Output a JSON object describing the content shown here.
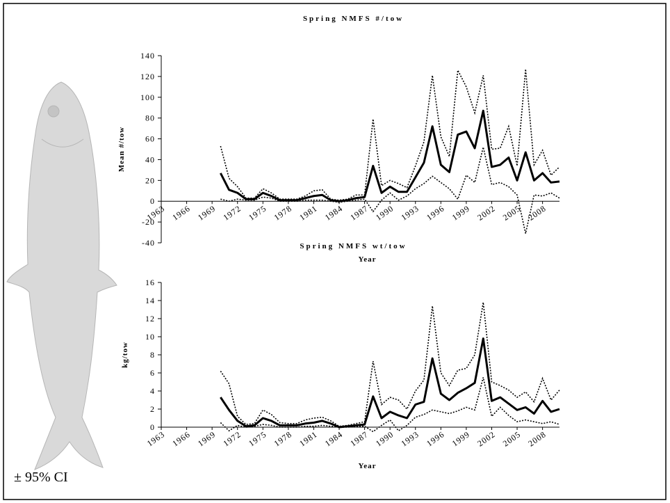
{
  "annotation": "± 95% CI",
  "chart_data": [
    {
      "type": "line",
      "title": "Spring NMFS #/tow",
      "ylabel": "Mean #/tow",
      "xlabel": "Year",
      "x": [
        1970,
        1971,
        1972,
        1973,
        1974,
        1975,
        1976,
        1977,
        1978,
        1979,
        1980,
        1981,
        1982,
        1983,
        1984,
        1985,
        1986,
        1987,
        1988,
        1989,
        1990,
        1991,
        1992,
        1993,
        1994,
        1995,
        1996,
        1997,
        1998,
        1999,
        2000,
        2001,
        2002,
        2003,
        2004,
        2005,
        2006,
        2007,
        2008,
        2009,
        2010
      ],
      "xlim": [
        1963,
        2010
      ],
      "xticks": [
        1963,
        1966,
        1969,
        1972,
        1975,
        1978,
        1981,
        1984,
        1987,
        1990,
        1993,
        1996,
        1999,
        2002,
        2005,
        2008
      ],
      "ylim": [
        -40,
        140
      ],
      "yticks": [
        -40,
        -20,
        0,
        20,
        40,
        60,
        80,
        100,
        120,
        140
      ],
      "series": [
        {
          "color": "#000000",
          "style": "solid",
          "values": [
            27,
            11,
            8,
            2,
            2,
            8,
            5,
            1,
            1,
            1,
            3,
            5,
            6,
            1,
            0,
            1,
            3,
            4,
            34,
            8,
            14,
            9,
            9,
            23,
            37,
            72,
            35,
            28,
            64,
            67,
            51,
            87,
            33,
            35,
            42,
            20,
            47,
            20,
            27,
            18,
            19
          ]
        },
        {
          "color": "#000000",
          "style": "dotted",
          "values": [
            53,
            22,
            14,
            3,
            3,
            12,
            8,
            2,
            2,
            2,
            5,
            10,
            11,
            2,
            1,
            2,
            6,
            6,
            79,
            15,
            20,
            17,
            13,
            34,
            57,
            121,
            62,
            43,
            126,
            110,
            85,
            121,
            50,
            51,
            72,
            34,
            127,
            35,
            49,
            25,
            33
          ]
        },
        {
          "color": "#000000",
          "style": "dotted",
          "values": [
            2,
            0,
            2,
            1,
            1,
            4,
            3,
            0,
            0,
            0,
            1,
            1,
            1,
            0,
            -1,
            0,
            1,
            2,
            -10,
            1,
            8,
            1,
            5,
            12,
            17,
            24,
            18,
            12,
            2,
            25,
            18,
            52,
            16,
            18,
            14,
            6,
            -31,
            6,
            5,
            8,
            3
          ]
        }
      ]
    },
    {
      "type": "line",
      "title": "Spring NMFS wt/tow",
      "ylabel": "kg/tow",
      "xlabel": "Year",
      "x": [
        1970,
        1971,
        1972,
        1973,
        1974,
        1975,
        1976,
        1977,
        1978,
        1979,
        1980,
        1981,
        1982,
        1983,
        1984,
        1985,
        1986,
        1987,
        1988,
        1989,
        1990,
        1991,
        1992,
        1993,
        1994,
        1995,
        1996,
        1997,
        1998,
        1999,
        2000,
        2001,
        2002,
        2003,
        2004,
        2005,
        2006,
        2007,
        2008,
        2009,
        2010
      ],
      "xlim": [
        1963,
        2010
      ],
      "xticks": [
        1963,
        1966,
        1969,
        1972,
        1975,
        1978,
        1981,
        1984,
        1987,
        1990,
        1993,
        1996,
        1999,
        2002,
        2005,
        2008
      ],
      "ylim": [
        0,
        16
      ],
      "yticks": [
        0,
        2,
        4,
        6,
        8,
        10,
        12,
        14,
        16
      ],
      "series": [
        {
          "color": "#000000",
          "style": "solid",
          "values": [
            3.3,
            1.9,
            0.7,
            0.1,
            0.2,
            1.0,
            0.7,
            0.2,
            0.2,
            0.2,
            0.4,
            0.5,
            0.7,
            0.4,
            0.0,
            0.1,
            0.2,
            0.3,
            3.4,
            1.0,
            1.7,
            1.3,
            1.0,
            2.5,
            2.8,
            7.6,
            3.7,
            3.0,
            3.8,
            4.3,
            4.9,
            9.8,
            2.9,
            3.3,
            2.6,
            1.9,
            2.2,
            1.5,
            2.9,
            1.7,
            2.0
          ]
        },
        {
          "color": "#000000",
          "style": "dotted",
          "values": [
            6.2,
            4.8,
            1.2,
            0.3,
            0.4,
            1.9,
            1.4,
            0.5,
            0.4,
            0.4,
            0.8,
            1.0,
            1.1,
            0.7,
            0.1,
            0.2,
            0.4,
            0.6,
            7.3,
            2.5,
            3.3,
            3.0,
            2.0,
            4.0,
            5.2,
            13.4,
            6.0,
            4.6,
            6.3,
            6.5,
            8.0,
            13.8,
            5.0,
            4.6,
            4.1,
            3.3,
            3.9,
            2.8,
            5.4,
            3.0,
            4.1
          ]
        },
        {
          "color": "#000000",
          "style": "dotted",
          "values": [
            0.5,
            -0.4,
            0.2,
            0.0,
            0.1,
            0.3,
            0.2,
            0.0,
            0.0,
            0.0,
            0.1,
            0.1,
            0.2,
            0.1,
            0.0,
            0.0,
            0.1,
            0.1,
            -0.5,
            0.2,
            0.8,
            -0.4,
            0.2,
            1.1,
            1.4,
            1.9,
            1.7,
            1.5,
            1.8,
            2.2,
            1.9,
            5.5,
            1.2,
            2.2,
            1.3,
            0.6,
            0.8,
            0.6,
            0.4,
            0.6,
            0.3
          ]
        }
      ]
    }
  ]
}
